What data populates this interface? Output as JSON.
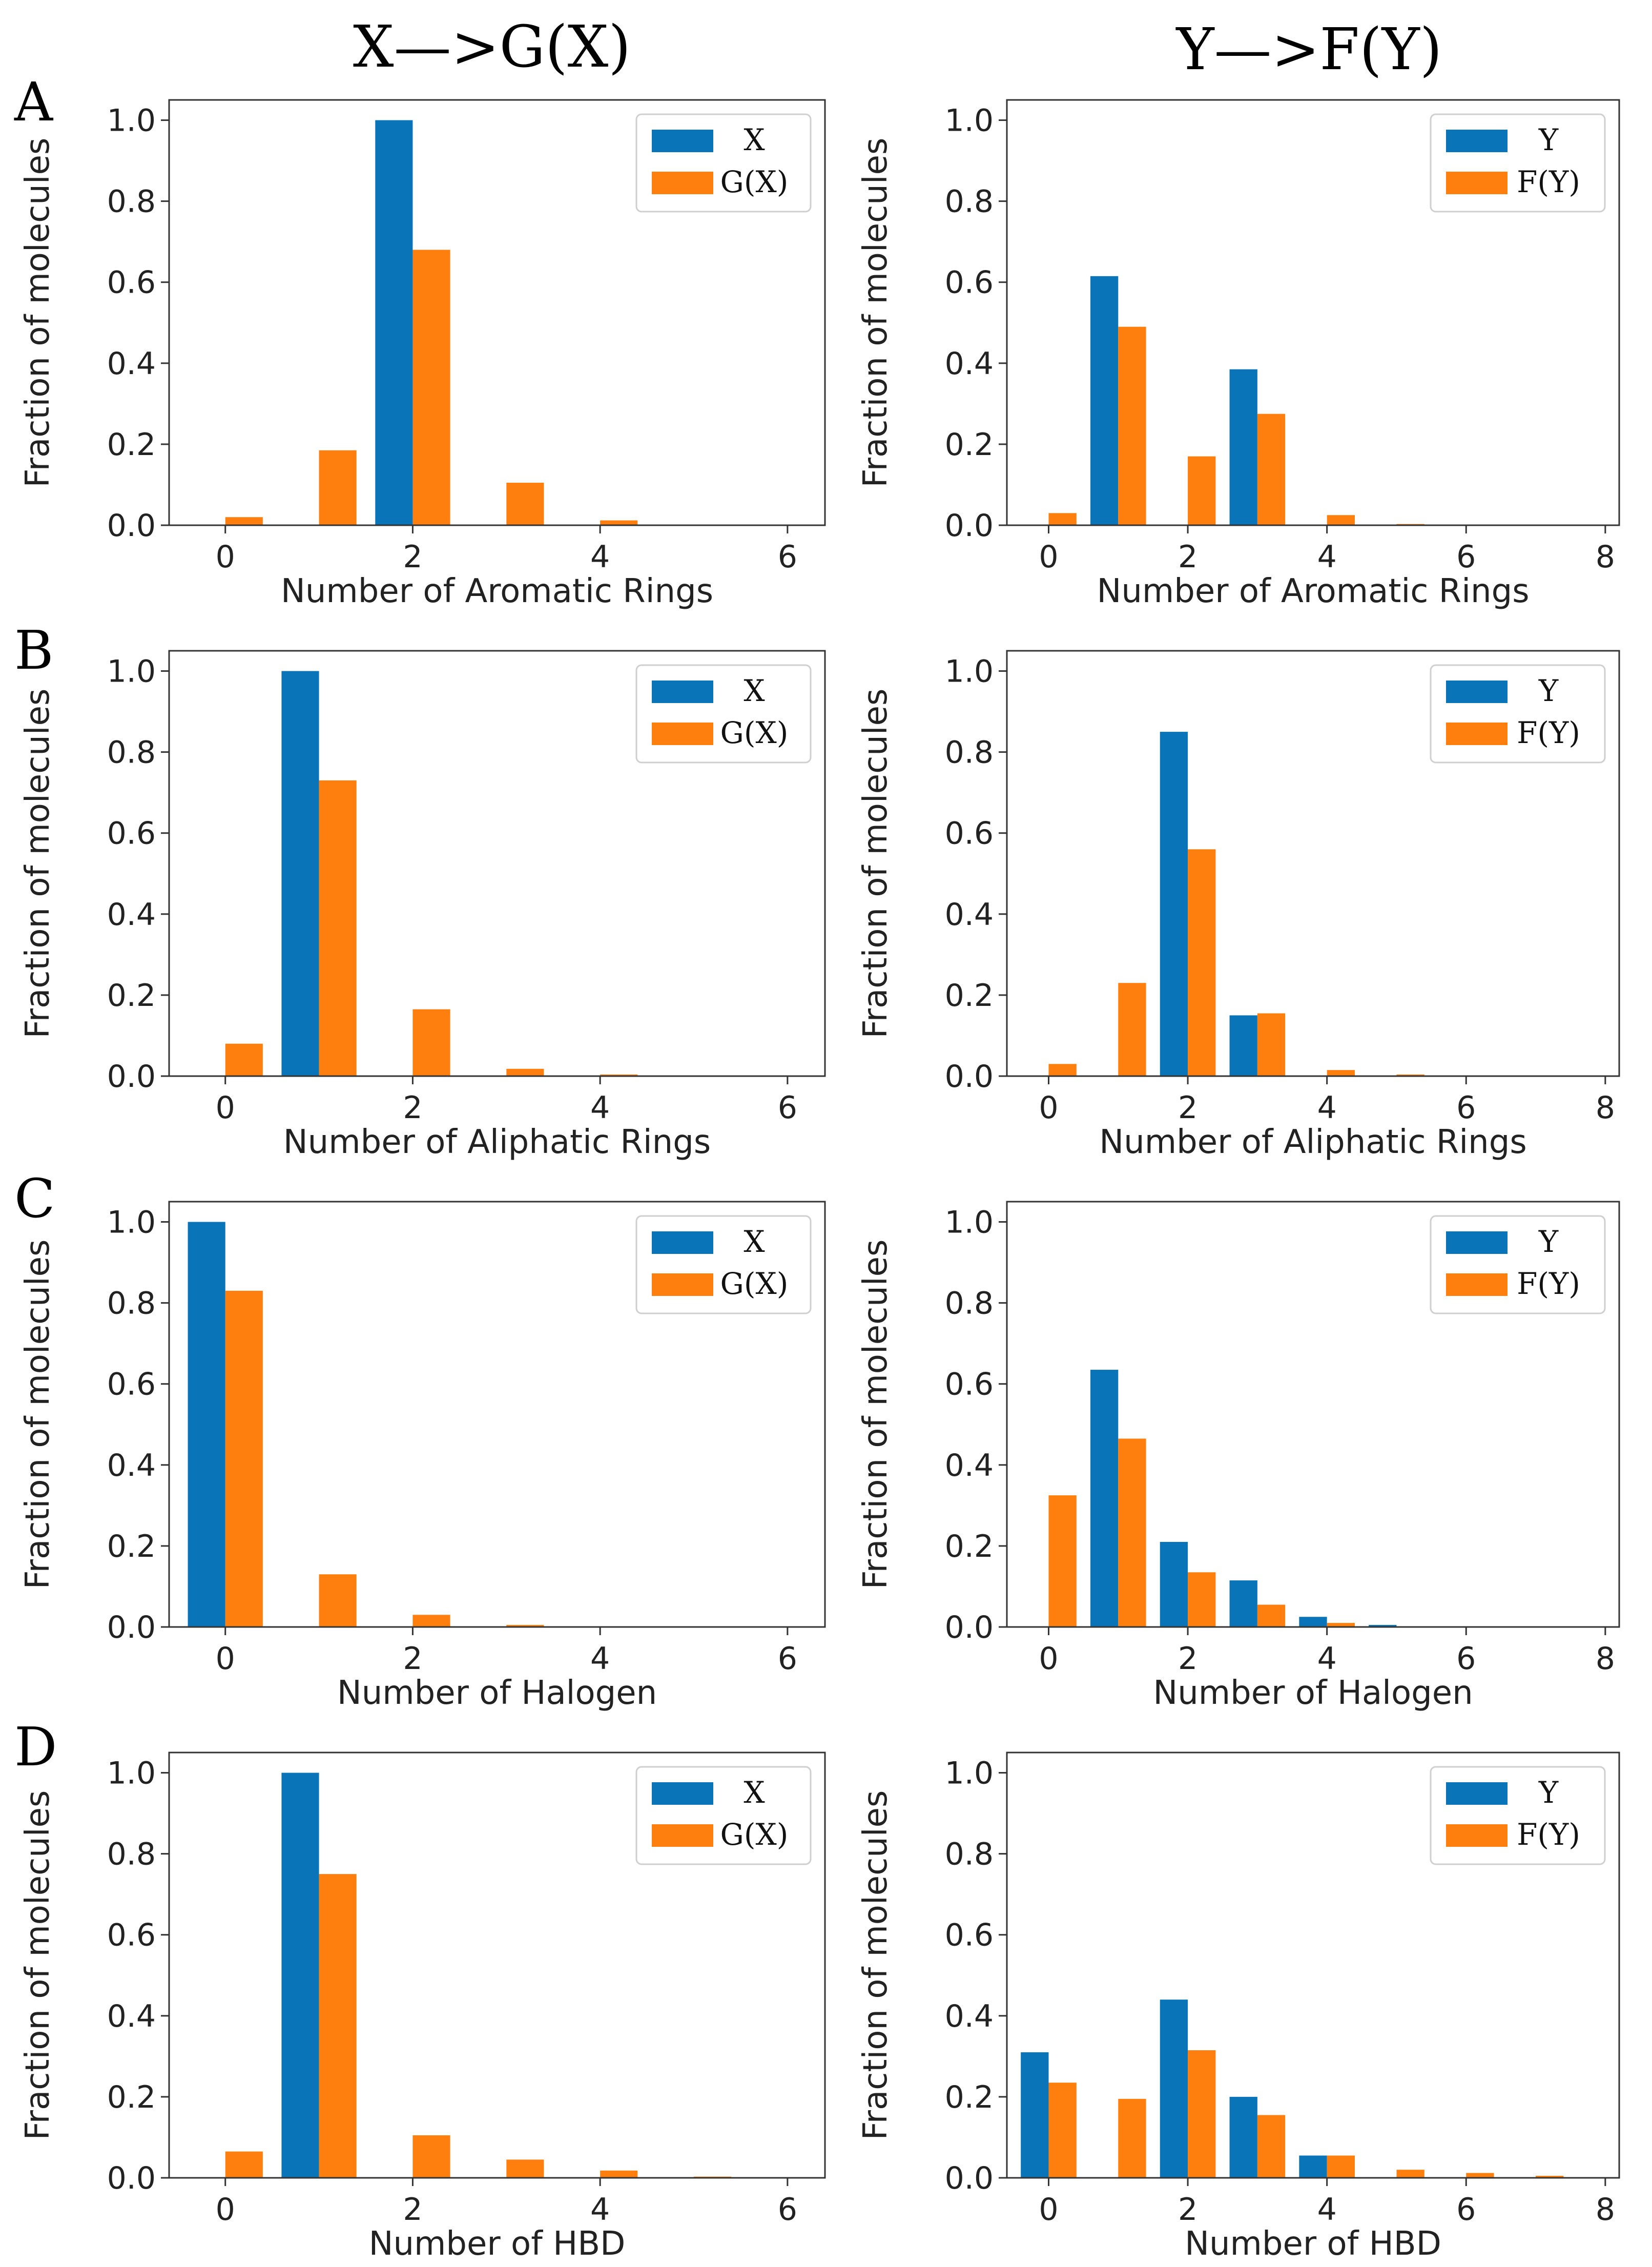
{
  "column_titles": [
    "X—>G(X)",
    "Y—>F(Y)"
  ],
  "row_labels": [
    "A",
    "B",
    "C",
    "D"
  ],
  "colors": {
    "series_1": "#0a74b8",
    "series_2": "#ff7f0e",
    "axis": "#333333"
  },
  "chart_data": [
    {
      "panel": "A-left",
      "type": "bar",
      "xlabel": "Number of Aromatic Rings",
      "ylabel": "Fraction of molecules",
      "xlim": [
        -0.6,
        6.4
      ],
      "ylim": [
        0,
        1.05
      ],
      "xticks": [
        0,
        2,
        4,
        6
      ],
      "yticks": [
        0.0,
        0.2,
        0.4,
        0.6,
        0.8,
        1.0
      ],
      "x": [
        0,
        1,
        2,
        3,
        4,
        5,
        6
      ],
      "series": [
        {
          "name": "X",
          "values": [
            0,
            0,
            1.0,
            0,
            0,
            0,
            0
          ]
        },
        {
          "name": "G(X)",
          "values": [
            0.02,
            0.185,
            0.68,
            0.105,
            0.012,
            0,
            0
          ]
        }
      ],
      "legend": "top-right"
    },
    {
      "panel": "A-right",
      "type": "bar",
      "xlabel": "Number of Aromatic Rings",
      "ylabel": "Fraction of molecules",
      "xlim": [
        -0.6,
        8.2
      ],
      "ylim": [
        0,
        1.05
      ],
      "xticks": [
        0,
        2,
        4,
        6,
        8
      ],
      "yticks": [
        0.0,
        0.2,
        0.4,
        0.6,
        0.8,
        1.0
      ],
      "x": [
        0,
        1,
        2,
        3,
        4,
        5,
        6,
        7,
        8
      ],
      "series": [
        {
          "name": "Y",
          "values": [
            0,
            0.615,
            0,
            0.385,
            0,
            0,
            0,
            0,
            0
          ]
        },
        {
          "name": "F(Y)",
          "values": [
            0.03,
            0.49,
            0.17,
            0.275,
            0.025,
            0.003,
            0,
            0,
            0
          ]
        }
      ],
      "legend": "top-right"
    },
    {
      "panel": "B-left",
      "type": "bar",
      "xlabel": "Number of Aliphatic Rings",
      "ylabel": "Fraction of molecules",
      "xlim": [
        -0.6,
        6.4
      ],
      "ylim": [
        0,
        1.05
      ],
      "xticks": [
        0,
        2,
        4,
        6
      ],
      "yticks": [
        0.0,
        0.2,
        0.4,
        0.6,
        0.8,
        1.0
      ],
      "x": [
        0,
        1,
        2,
        3,
        4,
        5,
        6
      ],
      "series": [
        {
          "name": "X",
          "values": [
            0,
            1.0,
            0,
            0,
            0,
            0,
            0
          ]
        },
        {
          "name": "G(X)",
          "values": [
            0.08,
            0.73,
            0.165,
            0.018,
            0.004,
            0,
            0
          ]
        }
      ],
      "legend": "top-right"
    },
    {
      "panel": "B-right",
      "type": "bar",
      "xlabel": "Number of Aliphatic Rings",
      "ylabel": "Fraction of molecules",
      "xlim": [
        -0.6,
        8.2
      ],
      "ylim": [
        0,
        1.05
      ],
      "xticks": [
        0,
        2,
        4,
        6,
        8
      ],
      "yticks": [
        0.0,
        0.2,
        0.4,
        0.6,
        0.8,
        1.0
      ],
      "x": [
        0,
        1,
        2,
        3,
        4,
        5,
        6,
        7,
        8
      ],
      "series": [
        {
          "name": "Y",
          "values": [
            0,
            0,
            0.85,
            0.15,
            0,
            0,
            0,
            0,
            0
          ]
        },
        {
          "name": "F(Y)",
          "values": [
            0.03,
            0.23,
            0.56,
            0.155,
            0.015,
            0.004,
            0,
            0,
            0
          ]
        }
      ],
      "legend": "top-right"
    },
    {
      "panel": "C-left",
      "type": "bar",
      "xlabel": "Number of Halogen",
      "ylabel": "Fraction of molecules",
      "xlim": [
        -0.6,
        6.4
      ],
      "ylim": [
        0,
        1.05
      ],
      "xticks": [
        0,
        2,
        4,
        6
      ],
      "yticks": [
        0.0,
        0.2,
        0.4,
        0.6,
        0.8,
        1.0
      ],
      "x": [
        0,
        1,
        2,
        3,
        4,
        5,
        6
      ],
      "series": [
        {
          "name": "X",
          "values": [
            1.0,
            0,
            0,
            0,
            0,
            0,
            0
          ]
        },
        {
          "name": "G(X)",
          "values": [
            0.83,
            0.13,
            0.03,
            0.005,
            0,
            0,
            0
          ]
        }
      ],
      "legend": "top-right"
    },
    {
      "panel": "C-right",
      "type": "bar",
      "xlabel": "Number of Halogen",
      "ylabel": "Fraction of molecules",
      "xlim": [
        -0.6,
        8.2
      ],
      "ylim": [
        0,
        1.05
      ],
      "xticks": [
        0,
        2,
        4,
        6,
        8
      ],
      "yticks": [
        0.0,
        0.2,
        0.4,
        0.6,
        0.8,
        1.0
      ],
      "x": [
        0,
        1,
        2,
        3,
        4,
        5,
        6,
        7,
        8
      ],
      "series": [
        {
          "name": "Y",
          "values": [
            0,
            0.635,
            0.21,
            0.115,
            0.025,
            0.005,
            0,
            0,
            0
          ]
        },
        {
          "name": "F(Y)",
          "values": [
            0.325,
            0.465,
            0.135,
            0.055,
            0.01,
            0,
            0,
            0,
            0
          ]
        }
      ],
      "legend": "top-right"
    },
    {
      "panel": "D-left",
      "type": "bar",
      "xlabel": "Number of HBD",
      "ylabel": "Fraction of molecules",
      "xlim": [
        -0.6,
        6.4
      ],
      "ylim": [
        0,
        1.05
      ],
      "xticks": [
        0,
        2,
        4,
        6
      ],
      "yticks": [
        0.0,
        0.2,
        0.4,
        0.6,
        0.8,
        1.0
      ],
      "x": [
        0,
        1,
        2,
        3,
        4,
        5,
        6
      ],
      "series": [
        {
          "name": "X",
          "values": [
            0,
            1.0,
            0,
            0,
            0,
            0,
            0
          ]
        },
        {
          "name": "G(X)",
          "values": [
            0.065,
            0.75,
            0.105,
            0.045,
            0.018,
            0.003,
            0
          ]
        }
      ],
      "legend": "top-right"
    },
    {
      "panel": "D-right",
      "type": "bar",
      "xlabel": "Number of HBD",
      "ylabel": "Fraction of molecules",
      "xlim": [
        -0.6,
        8.2
      ],
      "ylim": [
        0,
        1.05
      ],
      "xticks": [
        0,
        2,
        4,
        6,
        8
      ],
      "yticks": [
        0.0,
        0.2,
        0.4,
        0.6,
        0.8,
        1.0
      ],
      "x": [
        0,
        1,
        2,
        3,
        4,
        5,
        6,
        7,
        8
      ],
      "series": [
        {
          "name": "Y",
          "values": [
            0.31,
            0,
            0.44,
            0.2,
            0.055,
            0,
            0,
            0,
            0
          ]
        },
        {
          "name": "F(Y)",
          "values": [
            0.235,
            0.195,
            0.315,
            0.155,
            0.055,
            0.02,
            0.012,
            0.005,
            0
          ]
        }
      ],
      "legend": "top-right"
    }
  ]
}
